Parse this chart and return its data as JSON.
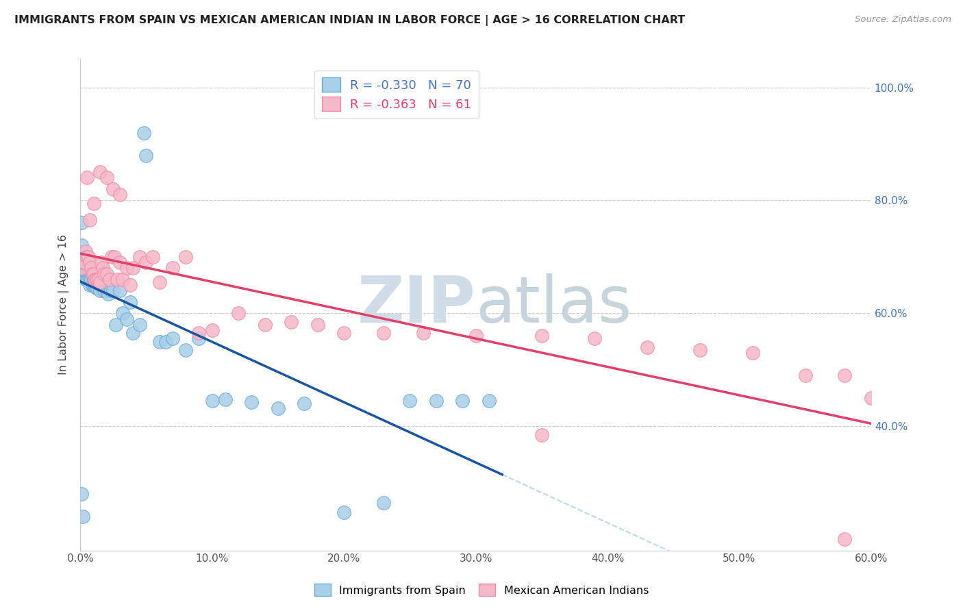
{
  "title": "IMMIGRANTS FROM SPAIN VS MEXICAN AMERICAN INDIAN IN LABOR FORCE | AGE > 16 CORRELATION CHART",
  "source": "Source: ZipAtlas.com",
  "ylabel": "In Labor Force | Age > 16",
  "xlim": [
    0.0,
    0.6
  ],
  "ylim": [
    0.18,
    1.05
  ],
  "xticks": [
    0.0,
    0.1,
    0.2,
    0.3,
    0.4,
    0.5,
    0.6
  ],
  "xtick_labels": [
    "0.0%",
    "10.0%",
    "20.0%",
    "30.0%",
    "40.0%",
    "50.0%",
    "60.0%"
  ],
  "yticks": [
    0.4,
    0.6,
    0.8,
    1.0
  ],
  "right_ytick_labels": [
    "40.0%",
    "60.0%",
    "80.0%",
    "100.0%"
  ],
  "blue_R": -0.33,
  "blue_N": 70,
  "pink_R": -0.363,
  "pink_N": 61,
  "blue_color": "#A8CEE8",
  "pink_color": "#F5B8C8",
  "blue_edge": "#6AAAD4",
  "pink_edge": "#EE8AAA",
  "trend_blue": "#1A56A0",
  "trend_pink": "#E0406A",
  "trend_dashed": "#B0CDE0",
  "watermark_zip": "ZIP",
  "watermark_atlas": "atlas",
  "watermark_color": "#D0DDE8",
  "legend_label_blue": "Immigrants from Spain",
  "legend_label_pink": "Mexican American Indians",
  "blue_scatter_x": [
    0.001,
    0.001,
    0.002,
    0.002,
    0.002,
    0.003,
    0.003,
    0.003,
    0.004,
    0.004,
    0.004,
    0.005,
    0.005,
    0.005,
    0.006,
    0.006,
    0.006,
    0.007,
    0.007,
    0.007,
    0.008,
    0.008,
    0.009,
    0.009,
    0.01,
    0.01,
    0.011,
    0.011,
    0.012,
    0.012,
    0.013,
    0.013,
    0.014,
    0.015,
    0.015,
    0.016,
    0.017,
    0.018,
    0.019,
    0.02,
    0.021,
    0.023,
    0.025,
    0.027,
    0.03,
    0.032,
    0.035,
    0.038,
    0.04,
    0.045,
    0.048,
    0.05,
    0.06,
    0.065,
    0.07,
    0.08,
    0.09,
    0.1,
    0.11,
    0.13,
    0.15,
    0.17,
    0.2,
    0.23,
    0.25,
    0.27,
    0.29,
    0.31,
    0.001,
    0.002
  ],
  "blue_scatter_y": [
    0.76,
    0.72,
    0.7,
    0.69,
    0.68,
    0.7,
    0.69,
    0.68,
    0.68,
    0.67,
    0.66,
    0.68,
    0.67,
    0.66,
    0.68,
    0.67,
    0.66,
    0.67,
    0.66,
    0.65,
    0.67,
    0.66,
    0.67,
    0.65,
    0.66,
    0.65,
    0.67,
    0.65,
    0.66,
    0.645,
    0.66,
    0.645,
    0.655,
    0.66,
    0.64,
    0.65,
    0.65,
    0.64,
    0.66,
    0.64,
    0.635,
    0.64,
    0.64,
    0.58,
    0.64,
    0.6,
    0.59,
    0.62,
    0.565,
    0.58,
    0.92,
    0.88,
    0.55,
    0.55,
    0.555,
    0.535,
    0.555,
    0.445,
    0.448,
    0.443,
    0.432,
    0.44,
    0.248,
    0.265,
    0.445,
    0.445,
    0.445,
    0.445,
    0.28,
    0.24
  ],
  "pink_scatter_x": [
    0.001,
    0.002,
    0.003,
    0.004,
    0.005,
    0.006,
    0.007,
    0.008,
    0.009,
    0.01,
    0.011,
    0.012,
    0.013,
    0.014,
    0.015,
    0.016,
    0.017,
    0.018,
    0.02,
    0.022,
    0.024,
    0.026,
    0.028,
    0.03,
    0.032,
    0.035,
    0.038,
    0.04,
    0.045,
    0.05,
    0.055,
    0.06,
    0.07,
    0.08,
    0.09,
    0.1,
    0.12,
    0.14,
    0.16,
    0.18,
    0.2,
    0.23,
    0.26,
    0.3,
    0.35,
    0.39,
    0.43,
    0.47,
    0.51,
    0.55,
    0.58,
    0.6,
    0.005,
    0.007,
    0.01,
    0.015,
    0.02,
    0.025,
    0.03,
    0.35,
    0.58
  ],
  "pink_scatter_y": [
    0.68,
    0.69,
    0.69,
    0.71,
    0.7,
    0.7,
    0.69,
    0.68,
    0.67,
    0.67,
    0.66,
    0.66,
    0.66,
    0.66,
    0.655,
    0.69,
    0.68,
    0.67,
    0.67,
    0.66,
    0.7,
    0.7,
    0.66,
    0.69,
    0.66,
    0.68,
    0.65,
    0.68,
    0.7,
    0.69,
    0.7,
    0.655,
    0.68,
    0.7,
    0.565,
    0.57,
    0.6,
    0.58,
    0.585,
    0.58,
    0.565,
    0.565,
    0.565,
    0.56,
    0.56,
    0.555,
    0.54,
    0.535,
    0.53,
    0.49,
    0.49,
    0.45,
    0.84,
    0.765,
    0.795,
    0.85,
    0.84,
    0.82,
    0.81,
    0.385,
    0.2
  ],
  "blue_trend_x_start": 0.0,
  "blue_trend_x_end": 0.32,
  "pink_trend_x_start": 0.0,
  "pink_trend_x_end": 0.6,
  "dash_trend_x_start": 0.32,
  "dash_trend_x_end": 0.6
}
